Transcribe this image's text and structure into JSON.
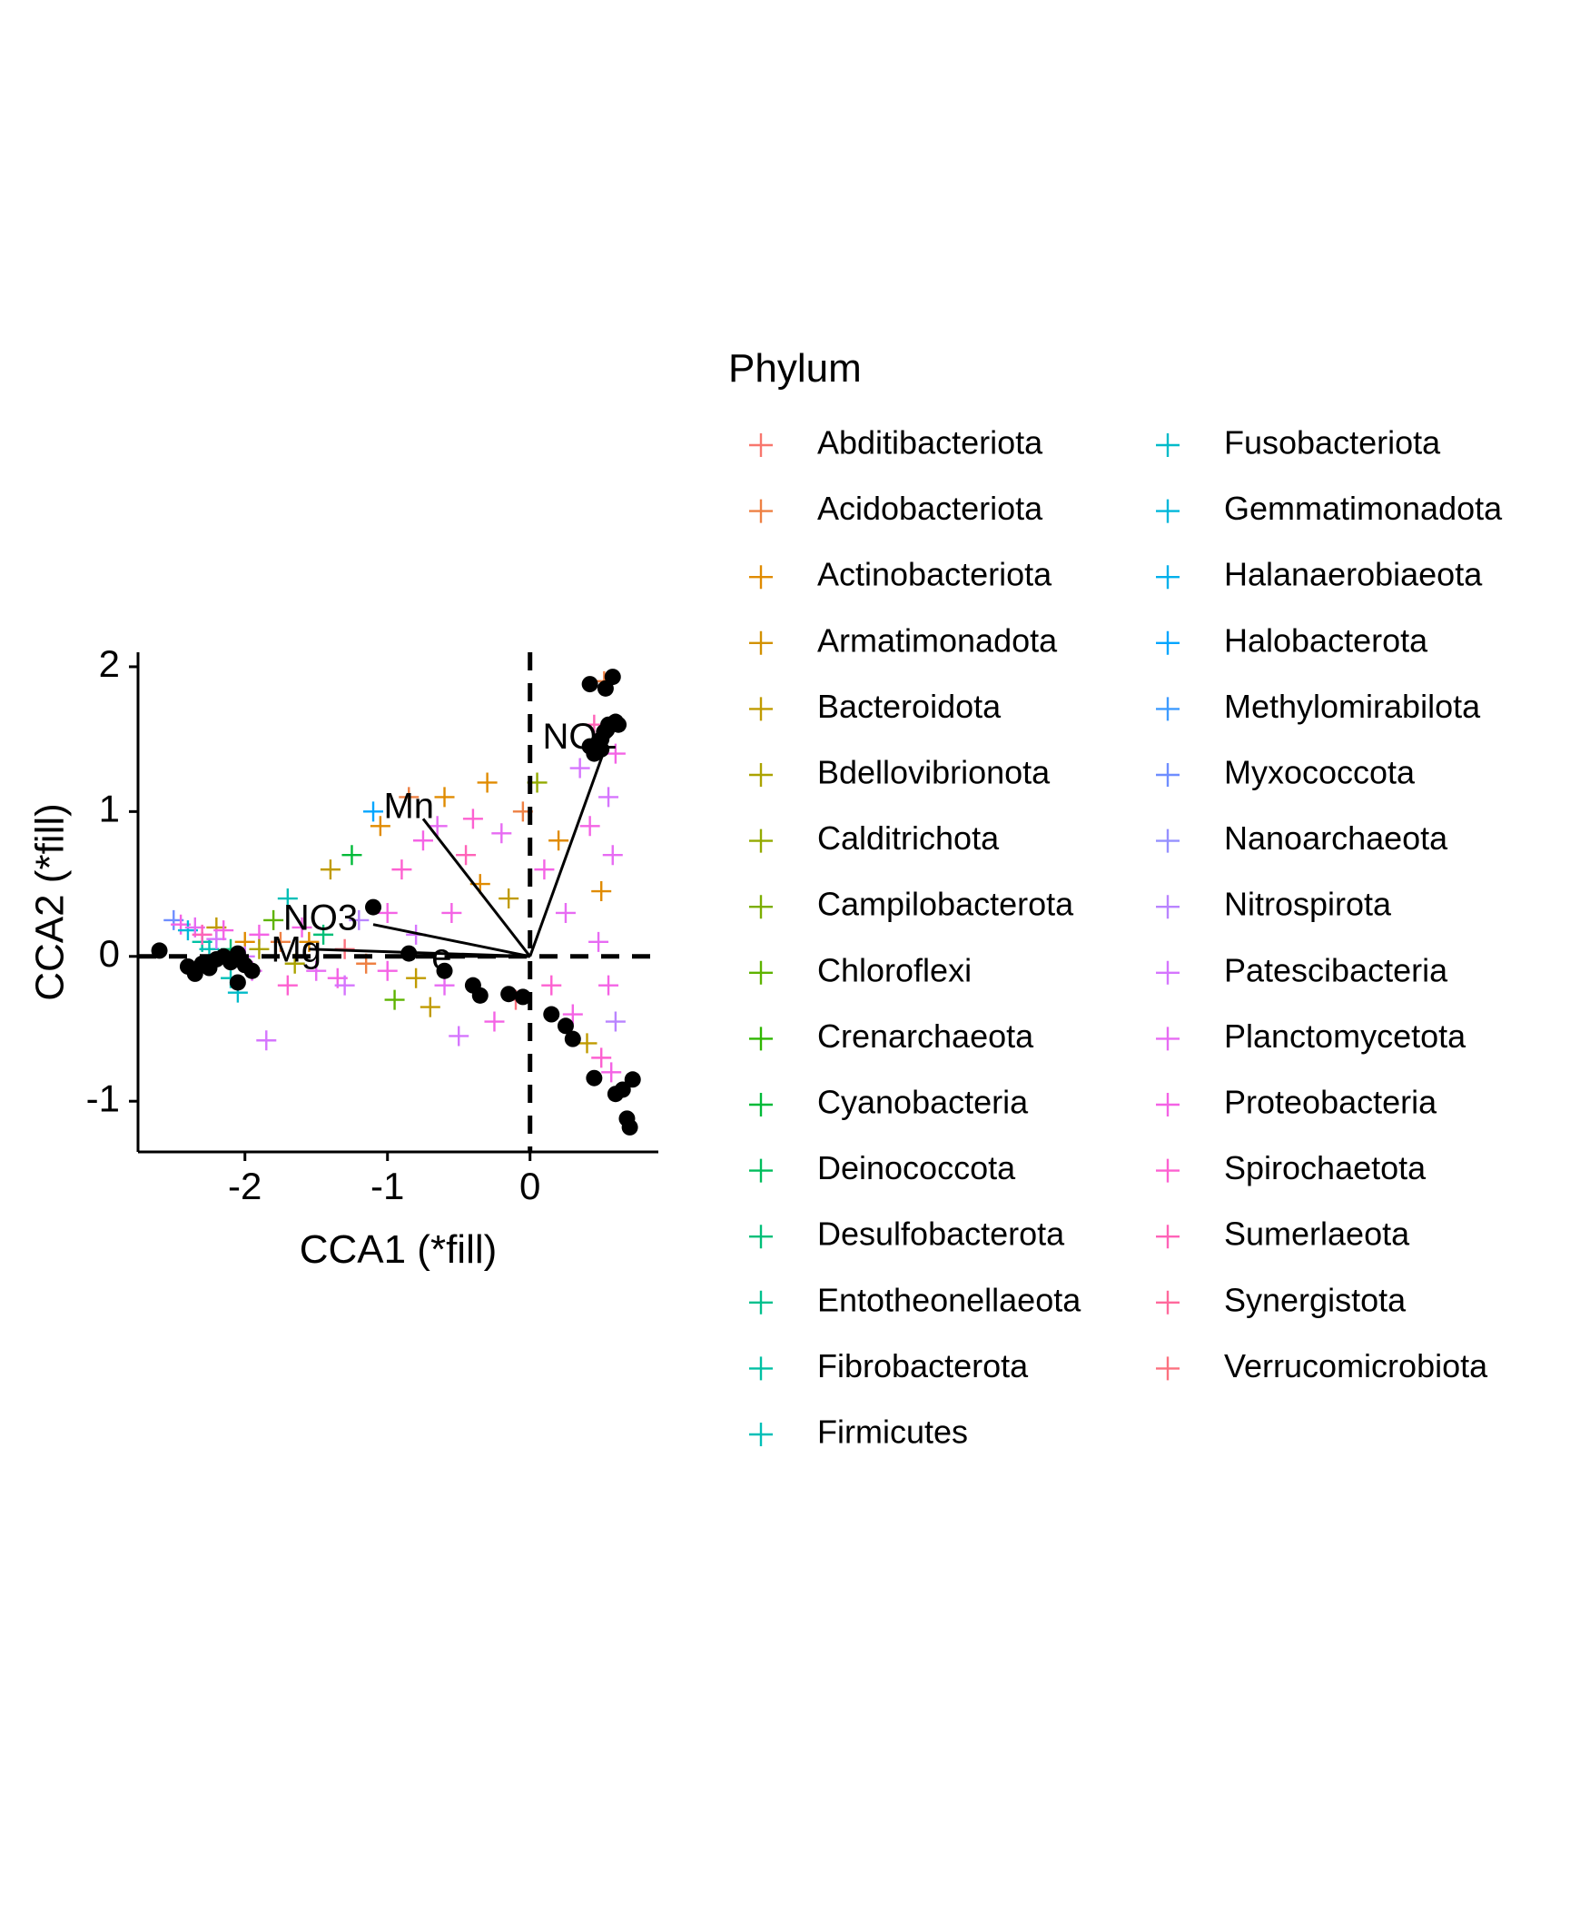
{
  "chart_data": {
    "type": "scatter",
    "title": "",
    "xlabel": "CCA1 (*fill)",
    "ylabel": "CCA2 (*fill)",
    "xlim": [
      -2.75,
      0.9
    ],
    "ylim": [
      -1.35,
      2.1
    ],
    "xticks": [
      "-2",
      "-1",
      "0"
    ],
    "xtick_values": [
      -2,
      -1,
      0
    ],
    "yticks": [
      "2",
      "1",
      "0",
      "-1"
    ],
    "ytick_values": [
      2,
      1,
      0,
      -1
    ],
    "grid": false,
    "reference_lines": {
      "x": 0,
      "y": 0,
      "style": "dashed"
    },
    "legend": {
      "title": "Phylum",
      "placement": "right",
      "columns": 2
    },
    "series": [
      {
        "name": "Abditibacteriota",
        "color": "#F8766D",
        "marker": "plus"
      },
      {
        "name": "Acidobacteriota",
        "color": "#EE8043",
        "marker": "plus"
      },
      {
        "name": "Actinobacteriota",
        "color": "#E08B00",
        "marker": "plus"
      },
      {
        "name": "Armatimonadota",
        "color": "#D29100",
        "marker": "plus"
      },
      {
        "name": "Bacteroidota",
        "color": "#C09B00",
        "marker": "plus"
      },
      {
        "name": "Bdellovibrionota",
        "color": "#ABA300",
        "marker": "plus"
      },
      {
        "name": "Calditrichota",
        "color": "#93AA00",
        "marker": "plus"
      },
      {
        "name": "Campilobacterota",
        "color": "#7CAE00",
        "marker": "plus"
      },
      {
        "name": "Chloroflexi",
        "color": "#5EB300",
        "marker": "plus"
      },
      {
        "name": "Crenarchaeota",
        "color": "#2FB600",
        "marker": "plus"
      },
      {
        "name": "Cyanobacteria",
        "color": "#00BA38",
        "marker": "plus"
      },
      {
        "name": "Deinococcota",
        "color": "#00BD5C",
        "marker": "plus"
      },
      {
        "name": "Desulfobacterota",
        "color": "#00BF78",
        "marker": "plus"
      },
      {
        "name": "Entotheonellaeota",
        "color": "#00C08D",
        "marker": "plus"
      },
      {
        "name": "Fibrobacterota",
        "color": "#00C0A3",
        "marker": "plus"
      },
      {
        "name": "Firmicutes",
        "color": "#00BFB7",
        "marker": "plus"
      },
      {
        "name": "Fusobacteriota",
        "color": "#00BBC9",
        "marker": "plus"
      },
      {
        "name": "Gemmatimonadota",
        "color": "#00B7DA",
        "marker": "plus"
      },
      {
        "name": "Halanaerobiaeota",
        "color": "#00B0EB",
        "marker": "plus"
      },
      {
        "name": "Halobacterota",
        "color": "#00A5FF",
        "marker": "plus"
      },
      {
        "name": "Methylomirabilota",
        "color": "#3D9BFF",
        "marker": "plus"
      },
      {
        "name": "Myxococcota",
        "color": "#6F8EFF",
        "marker": "plus"
      },
      {
        "name": "Nanoarchaeota",
        "color": "#9590FF",
        "marker": "plus"
      },
      {
        "name": "Nitrospirota",
        "color": "#B984FF",
        "marker": "plus"
      },
      {
        "name": "Patescibacteria",
        "color": "#D575FE",
        "marker": "plus"
      },
      {
        "name": "Planctomycetota",
        "color": "#E76BF3",
        "marker": "plus"
      },
      {
        "name": "Proteobacteria",
        "color": "#F463E5",
        "marker": "plus"
      },
      {
        "name": "Spirochaetota",
        "color": "#FD61D1",
        "marker": "plus"
      },
      {
        "name": "Sumerlaeota",
        "color": "#FF63B8",
        "marker": "plus"
      },
      {
        "name": "Synergistota",
        "color": "#FF699C",
        "marker": "plus"
      },
      {
        "name": "Verrucomicrobiota",
        "color": "#FC717F",
        "marker": "plus"
      }
    ],
    "taxa_points": [
      [
        -2.5,
        0.25,
        "Myxococcota"
      ],
      [
        -2.45,
        0.22,
        "Proteobacteria"
      ],
      [
        -2.4,
        0.18,
        "Gemmatimonadota"
      ],
      [
        -2.35,
        0.2,
        "Planctomycetota"
      ],
      [
        -2.3,
        0.1,
        "Fibrobacterota"
      ],
      [
        -2.3,
        0.15,
        "Sumerlaeota"
      ],
      [
        -2.25,
        0.05,
        "Firmicutes"
      ],
      [
        -2.2,
        0.2,
        "Bacteroidota"
      ],
      [
        -2.2,
        0.12,
        "Patescibacteria"
      ],
      [
        -2.15,
        0.18,
        "Proteobacteria"
      ],
      [
        -2.1,
        -0.15,
        "Firmicutes"
      ],
      [
        -2.1,
        0.05,
        "Desulfobacterota"
      ],
      [
        -2.05,
        -0.25,
        "Fusobacteriota"
      ],
      [
        -2.0,
        0.1,
        "Actinobacteriota"
      ],
      [
        -1.95,
        -0.1,
        "Planctomycetota"
      ],
      [
        -1.9,
        0.15,
        "Proteobacteria"
      ],
      [
        -1.85,
        -0.58,
        "Patescibacteria"
      ],
      [
        -1.8,
        0.25,
        "Chloroflexi"
      ],
      [
        -1.75,
        0.1,
        "Acidobacteriota"
      ],
      [
        -1.7,
        0.4,
        "Firmicutes"
      ],
      [
        -1.7,
        -0.2,
        "Spirochaetota"
      ],
      [
        -1.65,
        -0.05,
        "Bdellovibrionota"
      ],
      [
        -1.6,
        0.2,
        "Proteobacteria"
      ],
      [
        -1.55,
        0.1,
        "Actinobacteriota"
      ],
      [
        -1.5,
        -0.1,
        "Planctomycetota"
      ],
      [
        -1.45,
        0.15,
        "Desulfobacterota"
      ],
      [
        -1.4,
        0.6,
        "Bacteroidota"
      ],
      [
        -1.35,
        -0.15,
        "Proteobacteria"
      ],
      [
        -1.3,
        0.05,
        "Verrucomicrobiota"
      ],
      [
        -1.25,
        0.7,
        "Cyanobacteria"
      ],
      [
        -1.2,
        0.25,
        "Nitrospirota"
      ],
      [
        -1.15,
        -0.05,
        "Acidobacteriota"
      ],
      [
        -1.1,
        1.0,
        "Halobacterota"
      ],
      [
        -1.05,
        0.9,
        "Actinobacteriota"
      ],
      [
        -1.0,
        0.3,
        "Proteobacteria"
      ],
      [
        -0.95,
        -0.3,
        "Chloroflexi"
      ],
      [
        -0.9,
        0.6,
        "Spirochaetota"
      ],
      [
        -0.85,
        1.1,
        "Acidobacteriota"
      ],
      [
        -0.8,
        0.15,
        "Patescibacteria"
      ],
      [
        -0.75,
        0.8,
        "Proteobacteria"
      ],
      [
        -0.7,
        -0.35,
        "Bacteroidota"
      ],
      [
        -0.65,
        0.9,
        "Planctomycetota"
      ],
      [
        -0.6,
        1.1,
        "Actinobacteriota"
      ],
      [
        -0.55,
        0.3,
        "Proteobacteria"
      ],
      [
        -0.5,
        -0.55,
        "Patescibacteria"
      ],
      [
        -0.45,
        0.7,
        "Sumerlaeota"
      ],
      [
        -0.4,
        0.95,
        "Spirochaetota"
      ],
      [
        -0.35,
        0.5,
        "Actinobacteriota"
      ],
      [
        -0.3,
        1.2,
        "Actinobacteriota"
      ],
      [
        -0.25,
        -0.45,
        "Proteobacteria"
      ],
      [
        -0.2,
        0.85,
        "Planctomycetota"
      ],
      [
        -0.15,
        0.4,
        "Bacteroidota"
      ],
      [
        -0.1,
        -0.3,
        "Verrucomicrobiota"
      ],
      [
        -0.05,
        1.0,
        "Acidobacteriota"
      ],
      [
        0.05,
        1.2,
        "Calditrichota"
      ],
      [
        0.1,
        0.6,
        "Proteobacteria"
      ],
      [
        0.15,
        -0.2,
        "Spirochaetota"
      ],
      [
        0.2,
        0.8,
        "Actinobacteriota"
      ],
      [
        0.25,
        0.3,
        "Planctomycetota"
      ],
      [
        0.3,
        -0.4,
        "Proteobacteria"
      ],
      [
        0.35,
        1.3,
        "Patescibacteria"
      ],
      [
        0.4,
        -0.6,
        "Bacteroidota"
      ],
      [
        0.42,
        0.9,
        "Proteobacteria"
      ],
      [
        0.45,
        1.6,
        "Sumerlaeota"
      ],
      [
        0.48,
        0.1,
        "Planctomycetota"
      ],
      [
        0.5,
        -0.7,
        "Spirochaetota"
      ],
      [
        0.5,
        0.45,
        "Actinobacteriota"
      ],
      [
        0.52,
        1.9,
        "Acidobacteriota"
      ],
      [
        0.55,
        -0.2,
        "Proteobacteria"
      ],
      [
        0.55,
        1.1,
        "Patescibacteria"
      ],
      [
        0.57,
        -0.8,
        "Proteobacteria"
      ],
      [
        0.58,
        0.7,
        "Planctomycetota"
      ],
      [
        0.6,
        1.4,
        "Proteobacteria"
      ],
      [
        0.6,
        -0.45,
        "Nitrospirota"
      ],
      [
        -2.0,
        0.0,
        "Patescibacteria"
      ],
      [
        -1.0,
        -0.1,
        "Proteobacteria"
      ],
      [
        -0.6,
        -0.2,
        "Planctomycetota"
      ],
      [
        -1.3,
        -0.2,
        "Patescibacteria"
      ],
      [
        -0.8,
        -0.15,
        "Bacteroidota"
      ],
      [
        -1.9,
        0.05,
        "Bdellovibrionota"
      ]
    ],
    "site_points": [
      [
        -2.6,
        0.04
      ],
      [
        -2.4,
        -0.07
      ],
      [
        -2.35,
        -0.12
      ],
      [
        -2.3,
        -0.05
      ],
      [
        -2.25,
        -0.08
      ],
      [
        -2.2,
        -0.02
      ],
      [
        -2.15,
        0.0
      ],
      [
        -2.1,
        -0.04
      ],
      [
        -2.05,
        0.02
      ],
      [
        -2.0,
        -0.06
      ],
      [
        -2.05,
        -0.18
      ],
      [
        -1.95,
        -0.1
      ],
      [
        -1.1,
        0.34
      ],
      [
        -0.85,
        0.02
      ],
      [
        -0.6,
        -0.1
      ],
      [
        -0.4,
        -0.2
      ],
      [
        -0.35,
        -0.27
      ],
      [
        -0.15,
        -0.26
      ],
      [
        -0.05,
        -0.28
      ],
      [
        0.15,
        -0.4
      ],
      [
        0.25,
        -0.48
      ],
      [
        0.3,
        -0.57
      ],
      [
        0.45,
        -0.84
      ],
      [
        0.6,
        -0.95
      ],
      [
        0.65,
        -0.92
      ],
      [
        0.72,
        -0.85
      ],
      [
        0.68,
        -1.12
      ],
      [
        0.7,
        -1.18
      ],
      [
        0.42,
        1.45
      ],
      [
        0.45,
        1.4
      ],
      [
        0.5,
        1.5
      ],
      [
        0.52,
        1.55
      ],
      [
        0.55,
        1.6
      ],
      [
        0.6,
        1.62
      ],
      [
        0.62,
        1.6
      ],
      [
        0.58,
        1.93
      ],
      [
        0.53,
        1.85
      ],
      [
        0.42,
        1.88
      ],
      [
        0.48,
        1.48
      ],
      [
        0.5,
        1.43
      ]
    ],
    "arrows": [
      {
        "label": "NO2",
        "x": 0.52,
        "y": 1.42,
        "label_x": 0.35,
        "label_y": 1.5
      },
      {
        "label": "Mn",
        "x": -0.75,
        "y": 0.95,
        "label_x": -0.85,
        "label_y": 1.02
      },
      {
        "label": "NO3",
        "x": -1.1,
        "y": 0.22,
        "label_x": -1.47,
        "label_y": 0.25
      },
      {
        "label": "Mg",
        "x": -1.55,
        "y": 0.05,
        "label_x": -1.64,
        "label_y": 0.03
      },
      {
        "label": "e",
        "x": -0.6,
        "y": 0.0,
        "label_x": -0.62,
        "label_y": -0.02
      }
    ]
  }
}
